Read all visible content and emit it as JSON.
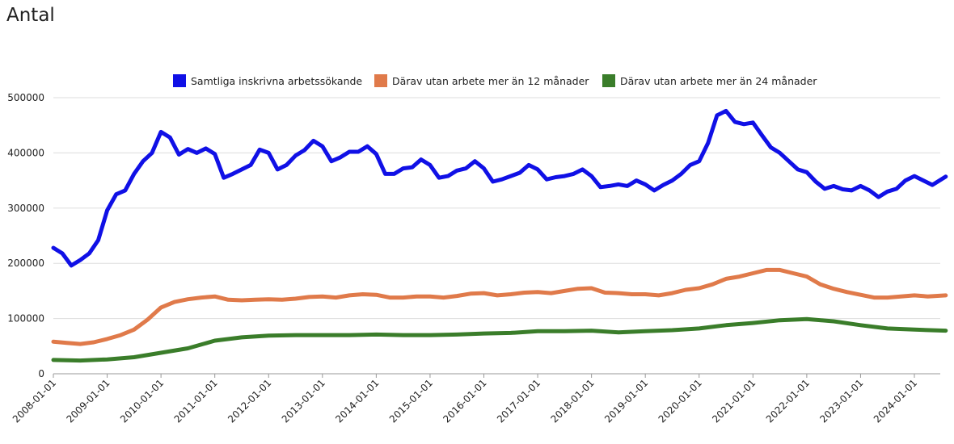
{
  "chart_data": {
    "type": "line",
    "title": "",
    "subtitle": "Antal",
    "xlabel": "",
    "ylabel": "",
    "ylim": [
      0,
      500000
    ],
    "yticks": [
      "0",
      "100000",
      "200000",
      "300000",
      "400000",
      "500000"
    ],
    "xticks": [
      "2008-01-01",
      "2009-01-01",
      "2010-01-01",
      "2011-01-01",
      "2012-01-01",
      "2013-01-01",
      "2014-01-01",
      "2015-01-01",
      "2016-01-01",
      "2017-01-01",
      "2018-01-01",
      "2019-01-01",
      "2020-01-01",
      "2021-01-01",
      "2022-01-01",
      "2023-01-01",
      "2024-01-01"
    ],
    "grid": "horizontal",
    "legend_position": "top-center",
    "x_range": [
      "2008-01",
      "2024-08"
    ],
    "series": [
      {
        "name": "Samtliga inskrivna arbetssökande",
        "color": "#1010e6",
        "points": [
          [
            "2008-01",
            228000
          ],
          [
            "2008-03",
            218000
          ],
          [
            "2008-05",
            196000
          ],
          [
            "2008-07",
            206000
          ],
          [
            "2008-09",
            218000
          ],
          [
            "2008-11",
            242000
          ],
          [
            "2009-01",
            296000
          ],
          [
            "2009-03",
            325000
          ],
          [
            "2009-05",
            332000
          ],
          [
            "2009-07",
            362000
          ],
          [
            "2009-09",
            385000
          ],
          [
            "2009-11",
            400000
          ],
          [
            "2010-01",
            438000
          ],
          [
            "2010-03",
            428000
          ],
          [
            "2010-05",
            397000
          ],
          [
            "2010-07",
            407000
          ],
          [
            "2010-09",
            400000
          ],
          [
            "2010-11",
            408000
          ],
          [
            "2011-01",
            398000
          ],
          [
            "2011-03",
            355000
          ],
          [
            "2011-05",
            362000
          ],
          [
            "2011-07",
            370000
          ],
          [
            "2011-09",
            378000
          ],
          [
            "2011-11",
            406000
          ],
          [
            "2012-01",
            400000
          ],
          [
            "2012-03",
            370000
          ],
          [
            "2012-05",
            378000
          ],
          [
            "2012-07",
            395000
          ],
          [
            "2012-09",
            405000
          ],
          [
            "2012-11",
            422000
          ],
          [
            "2013-01",
            412000
          ],
          [
            "2013-03",
            385000
          ],
          [
            "2013-05",
            392000
          ],
          [
            "2013-07",
            402000
          ],
          [
            "2013-09",
            402000
          ],
          [
            "2013-11",
            412000
          ],
          [
            "2014-01",
            398000
          ],
          [
            "2014-03",
            362000
          ],
          [
            "2014-05",
            362000
          ],
          [
            "2014-07",
            372000
          ],
          [
            "2014-09",
            374000
          ],
          [
            "2014-11",
            388000
          ],
          [
            "2015-01",
            378000
          ],
          [
            "2015-03",
            355000
          ],
          [
            "2015-05",
            358000
          ],
          [
            "2015-07",
            368000
          ],
          [
            "2015-09",
            372000
          ],
          [
            "2015-11",
            385000
          ],
          [
            "2016-01",
            372000
          ],
          [
            "2016-03",
            348000
          ],
          [
            "2016-05",
            352000
          ],
          [
            "2016-07",
            358000
          ],
          [
            "2016-09",
            364000
          ],
          [
            "2016-11",
            378000
          ],
          [
            "2017-01",
            370000
          ],
          [
            "2017-03",
            352000
          ],
          [
            "2017-05",
            356000
          ],
          [
            "2017-07",
            358000
          ],
          [
            "2017-09",
            362000
          ],
          [
            "2017-11",
            370000
          ],
          [
            "2018-01",
            358000
          ],
          [
            "2018-03",
            338000
          ],
          [
            "2018-05",
            340000
          ],
          [
            "2018-07",
            343000
          ],
          [
            "2018-09",
            340000
          ],
          [
            "2018-11",
            350000
          ],
          [
            "2019-01",
            343000
          ],
          [
            "2019-03",
            332000
          ],
          [
            "2019-05",
            342000
          ],
          [
            "2019-07",
            350000
          ],
          [
            "2019-09",
            362000
          ],
          [
            "2019-11",
            378000
          ],
          [
            "2020-01",
            385000
          ],
          [
            "2020-03",
            418000
          ],
          [
            "2020-05",
            468000
          ],
          [
            "2020-07",
            476000
          ],
          [
            "2020-09",
            456000
          ],
          [
            "2020-11",
            452000
          ],
          [
            "2021-01",
            455000
          ],
          [
            "2021-03",
            432000
          ],
          [
            "2021-05",
            410000
          ],
          [
            "2021-07",
            400000
          ],
          [
            "2021-09",
            385000
          ],
          [
            "2021-11",
            370000
          ],
          [
            "2022-01",
            365000
          ],
          [
            "2022-03",
            348000
          ],
          [
            "2022-05",
            335000
          ],
          [
            "2022-07",
            340000
          ],
          [
            "2022-09",
            334000
          ],
          [
            "2022-11",
            332000
          ],
          [
            "2023-01",
            340000
          ],
          [
            "2023-03",
            332000
          ],
          [
            "2023-05",
            320000
          ],
          [
            "2023-07",
            330000
          ],
          [
            "2023-09",
            335000
          ],
          [
            "2023-11",
            350000
          ],
          [
            "2024-01",
            358000
          ],
          [
            "2024-03",
            350000
          ],
          [
            "2024-05",
            342000
          ],
          [
            "2024-08",
            357000
          ]
        ]
      },
      {
        "name": "Därav utan arbete mer än 12 månader",
        "color": "#e07a4a",
        "points": [
          [
            "2008-01",
            58000
          ],
          [
            "2008-04",
            56000
          ],
          [
            "2008-07",
            54000
          ],
          [
            "2008-10",
            57000
          ],
          [
            "2009-01",
            63000
          ],
          [
            "2009-04",
            70000
          ],
          [
            "2009-07",
            80000
          ],
          [
            "2009-10",
            98000
          ],
          [
            "2010-01",
            120000
          ],
          [
            "2010-04",
            130000
          ],
          [
            "2010-07",
            135000
          ],
          [
            "2010-10",
            138000
          ],
          [
            "2011-01",
            140000
          ],
          [
            "2011-04",
            134000
          ],
          [
            "2011-07",
            133000
          ],
          [
            "2011-10",
            134000
          ],
          [
            "2012-01",
            135000
          ],
          [
            "2012-04",
            134000
          ],
          [
            "2012-07",
            136000
          ],
          [
            "2012-10",
            139000
          ],
          [
            "2013-01",
            140000
          ],
          [
            "2013-04",
            138000
          ],
          [
            "2013-07",
            142000
          ],
          [
            "2013-10",
            144000
          ],
          [
            "2014-01",
            143000
          ],
          [
            "2014-04",
            138000
          ],
          [
            "2014-07",
            138000
          ],
          [
            "2014-10",
            140000
          ],
          [
            "2015-01",
            140000
          ],
          [
            "2015-04",
            138000
          ],
          [
            "2015-07",
            141000
          ],
          [
            "2015-10",
            145000
          ],
          [
            "2016-01",
            146000
          ],
          [
            "2016-04",
            142000
          ],
          [
            "2016-07",
            144000
          ],
          [
            "2016-10",
            147000
          ],
          [
            "2017-01",
            148000
          ],
          [
            "2017-04",
            146000
          ],
          [
            "2017-07",
            150000
          ],
          [
            "2017-10",
            154000
          ],
          [
            "2018-01",
            155000
          ],
          [
            "2018-04",
            147000
          ],
          [
            "2018-07",
            146000
          ],
          [
            "2018-10",
            144000
          ],
          [
            "2019-01",
            144000
          ],
          [
            "2019-04",
            142000
          ],
          [
            "2019-07",
            146000
          ],
          [
            "2019-10",
            152000
          ],
          [
            "2020-01",
            155000
          ],
          [
            "2020-04",
            162000
          ],
          [
            "2020-07",
            172000
          ],
          [
            "2020-10",
            176000
          ],
          [
            "2021-01",
            182000
          ],
          [
            "2021-04",
            188000
          ],
          [
            "2021-07",
            188000
          ],
          [
            "2021-10",
            182000
          ],
          [
            "2022-01",
            176000
          ],
          [
            "2022-04",
            162000
          ],
          [
            "2022-07",
            154000
          ],
          [
            "2022-10",
            148000
          ],
          [
            "2023-01",
            143000
          ],
          [
            "2023-04",
            138000
          ],
          [
            "2023-07",
            138000
          ],
          [
            "2023-10",
            140000
          ],
          [
            "2024-01",
            142000
          ],
          [
            "2024-04",
            140000
          ],
          [
            "2024-08",
            142000
          ]
        ]
      },
      {
        "name": "Därav utan arbete mer än 24 månader",
        "color": "#3a7d2a",
        "points": [
          [
            "2008-01",
            25000
          ],
          [
            "2008-07",
            24000
          ],
          [
            "2009-01",
            26000
          ],
          [
            "2009-07",
            30000
          ],
          [
            "2010-01",
            38000
          ],
          [
            "2010-07",
            46000
          ],
          [
            "2011-01",
            60000
          ],
          [
            "2011-07",
            66000
          ],
          [
            "2012-01",
            69000
          ],
          [
            "2012-07",
            70000
          ],
          [
            "2013-01",
            70000
          ],
          [
            "2013-07",
            70000
          ],
          [
            "2014-01",
            71000
          ],
          [
            "2014-07",
            70000
          ],
          [
            "2015-01",
            70000
          ],
          [
            "2015-07",
            71000
          ],
          [
            "2016-01",
            73000
          ],
          [
            "2016-07",
            74000
          ],
          [
            "2017-01",
            77000
          ],
          [
            "2017-07",
            77000
          ],
          [
            "2018-01",
            78000
          ],
          [
            "2018-07",
            75000
          ],
          [
            "2019-01",
            77000
          ],
          [
            "2019-07",
            79000
          ],
          [
            "2020-01",
            82000
          ],
          [
            "2020-07",
            88000
          ],
          [
            "2021-01",
            92000
          ],
          [
            "2021-07",
            97000
          ],
          [
            "2022-01",
            99000
          ],
          [
            "2022-07",
            95000
          ],
          [
            "2023-01",
            88000
          ],
          [
            "2023-07",
            82000
          ],
          [
            "2024-01",
            80000
          ],
          [
            "2024-08",
            78000
          ]
        ]
      }
    ]
  }
}
